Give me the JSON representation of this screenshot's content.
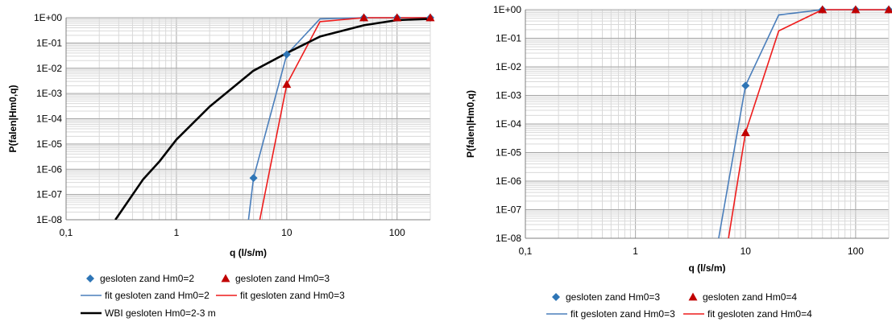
{
  "colors": {
    "blue": "#4a7ebb",
    "blue_marker": "#2e75b6",
    "red": "#ee1c1c",
    "red_marker": "#c00000",
    "black": "#000000",
    "grid_major": "#a6a6a6",
    "grid_minor": "#d9d9d9"
  },
  "chart_data": [
    {
      "type": "line",
      "xscale": "log",
      "yscale": "log",
      "xlabel": "q (l/s/m)",
      "ylabel": "P(falen|Hm0,q)",
      "xlim": [
        0.1,
        200
      ],
      "ylim": [
        1e-08,
        1
      ],
      "x_ticks": [
        {
          "v": 0.1,
          "label": "0,1"
        },
        {
          "v": 1,
          "label": "1"
        },
        {
          "v": 10,
          "label": "10"
        },
        {
          "v": 100,
          "label": "100"
        }
      ],
      "y_ticks": [
        {
          "v": 1,
          "label": "1E+00"
        },
        {
          "v": 0.1,
          "label": "1E-01"
        },
        {
          "v": 0.01,
          "label": "1E-02"
        },
        {
          "v": 0.001,
          "label": "1E-03"
        },
        {
          "v": 0.0001,
          "label": "1E-04"
        },
        {
          "v": 1e-05,
          "label": "1E-05"
        },
        {
          "v": 1e-06,
          "label": "1E-06"
        },
        {
          "v": 1e-07,
          "label": "1E-07"
        },
        {
          "v": 1e-08,
          "label": "1E-08"
        }
      ],
      "grid": true,
      "legend_position": "bottom",
      "series": [
        {
          "name": "gesloten zand Hm0=2",
          "kind": "marker",
          "marker": "diamond",
          "color_key": "blue_marker",
          "points": [
            [
              5,
              4.5e-07
            ],
            [
              10,
              0.035
            ],
            [
              50,
              1.0
            ],
            [
              100,
              1.0
            ],
            [
              200,
              1.0
            ]
          ]
        },
        {
          "name": "gesloten zand Hm0=3",
          "kind": "marker",
          "marker": "triangle",
          "color_key": "red_marker",
          "points": [
            [
              10,
              0.0023
            ],
            [
              50,
              1.0
            ],
            [
              100,
              1.0
            ],
            [
              200,
              1.0
            ]
          ]
        },
        {
          "name": "fit gesloten zand Hm0=2",
          "kind": "line",
          "color_key": "blue",
          "width": 1.6,
          "points": [
            [
              4.5,
              1e-08
            ],
            [
              5,
              4.5e-07
            ],
            [
              10,
              0.035
            ],
            [
              20,
              0.9
            ],
            [
              50,
              1.0
            ],
            [
              100,
              1.0
            ],
            [
              200,
              1.0
            ]
          ]
        },
        {
          "name": "fit gesloten zand Hm0=3",
          "kind": "line",
          "color_key": "red",
          "width": 1.6,
          "points": [
            [
              5.7,
              1e-08
            ],
            [
              10,
              0.0023
            ],
            [
              20,
              0.7
            ],
            [
              50,
              1.0
            ],
            [
              100,
              1.0
            ],
            [
              200,
              1.0
            ]
          ]
        },
        {
          "name": "WBI gesloten Hm0=2-3 m",
          "kind": "line",
          "color_key": "black",
          "width": 2.6,
          "points": [
            [
              0.28,
              1e-08
            ],
            [
              0.5,
              4e-07
            ],
            [
              0.7,
              2e-06
            ],
            [
              1,
              1.5e-05
            ],
            [
              2,
              0.0003
            ],
            [
              5,
              0.008
            ],
            [
              10,
              0.04
            ],
            [
              20,
              0.18
            ],
            [
              50,
              0.5
            ],
            [
              100,
              0.8
            ],
            [
              200,
              0.9
            ]
          ]
        }
      ],
      "legend_rows": [
        [
          "gesloten zand Hm0=2",
          "gesloten zand Hm0=3"
        ],
        [
          "fit gesloten zand Hm0=2",
          "fit gesloten zand Hm0=3"
        ],
        [
          "WBI gesloten Hm0=2-3 m"
        ]
      ]
    },
    {
      "type": "line",
      "xscale": "log",
      "yscale": "log",
      "xlabel": "q (l/s/m)",
      "ylabel": "P(falen|Hm0,q)",
      "xlim": [
        0.1,
        200
      ],
      "ylim": [
        1e-08,
        1
      ],
      "x_ticks": [
        {
          "v": 0.1,
          "label": "0,1"
        },
        {
          "v": 1,
          "label": "1"
        },
        {
          "v": 10,
          "label": "10"
        },
        {
          "v": 100,
          "label": "100"
        }
      ],
      "y_ticks": [
        {
          "v": 1,
          "label": "1E+00"
        },
        {
          "v": 0.1,
          "label": "1E-01"
        },
        {
          "v": 0.01,
          "label": "1E-02"
        },
        {
          "v": 0.001,
          "label": "1E-03"
        },
        {
          "v": 0.0001,
          "label": "1E-04"
        },
        {
          "v": 1e-05,
          "label": "1E-05"
        },
        {
          "v": 1e-06,
          "label": "1E-06"
        },
        {
          "v": 1e-07,
          "label": "1E-07"
        },
        {
          "v": 1e-08,
          "label": "1E-08"
        }
      ],
      "grid": true,
      "legend_position": "bottom",
      "series": [
        {
          "name": "gesloten zand Hm0=3",
          "kind": "marker",
          "marker": "diamond",
          "color_key": "blue_marker",
          "points": [
            [
              10,
              0.0022
            ],
            [
              50,
              1.0
            ],
            [
              100,
              1.0
            ],
            [
              200,
              1.0
            ]
          ]
        },
        {
          "name": "gesloten zand Hm0=4",
          "kind": "marker",
          "marker": "triangle",
          "color_key": "red_marker",
          "points": [
            [
              10,
              5e-05
            ],
            [
              50,
              1.0
            ],
            [
              100,
              1.0
            ],
            [
              200,
              1.0
            ]
          ]
        },
        {
          "name": "fit gesloten zand Hm0=3",
          "kind": "line",
          "color_key": "blue",
          "width": 1.6,
          "points": [
            [
              5.7,
              1e-08
            ],
            [
              10,
              0.0022
            ],
            [
              20,
              0.65
            ],
            [
              50,
              1.0
            ],
            [
              100,
              1.0
            ],
            [
              200,
              1.0
            ]
          ]
        },
        {
          "name": "fit gesloten zand Hm0=4",
          "kind": "line",
          "color_key": "red",
          "width": 1.6,
          "points": [
            [
              7,
              1e-08
            ],
            [
              10,
              5e-05
            ],
            [
              20,
              0.18
            ],
            [
              50,
              1.0
            ],
            [
              100,
              1.0
            ],
            [
              200,
              1.0
            ]
          ]
        }
      ],
      "legend_rows": [
        [
          "gesloten zand Hm0=3",
          "gesloten zand Hm0=4"
        ],
        [
          "fit gesloten zand Hm0=3",
          "fit gesloten zand Hm0=4"
        ]
      ]
    }
  ]
}
